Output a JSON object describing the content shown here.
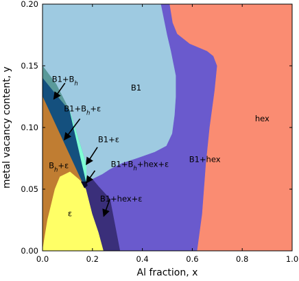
{
  "chart_data": {
    "type": "phase-diagram",
    "xlabel": "Al fraction, x",
    "ylabel": "metal vacancy content, y",
    "xlim": [
      0.0,
      1.0
    ],
    "ylim": [
      0.0,
      0.2
    ],
    "xticks": [
      "0.0",
      "0.2",
      "0.4",
      "0.6",
      "0.8",
      "1.0"
    ],
    "yticks": [
      "0.00",
      "0.05",
      "0.10",
      "0.15",
      "0.20"
    ],
    "regions": [
      {
        "label": "B1",
        "color": "#9ecae1",
        "boundary": [
          [
            0.0,
            0.2
          ],
          [
            0.475,
            0.2
          ],
          [
            0.485,
            0.19
          ],
          [
            0.5,
            0.175
          ],
          [
            0.515,
            0.162
          ],
          [
            0.525,
            0.152
          ],
          [
            0.535,
            0.142
          ],
          [
            0.535,
            0.125
          ],
          [
            0.53,
            0.11
          ],
          [
            0.52,
            0.095
          ],
          [
            0.497,
            0.085
          ],
          [
            0.45,
            0.08
          ],
          [
            0.38,
            0.075
          ],
          [
            0.32,
            0.071
          ],
          [
            0.27,
            0.066
          ],
          [
            0.24,
            0.062
          ],
          [
            0.2,
            0.058
          ],
          [
            0.175,
            0.056
          ],
          [
            0.0,
            0.15
          ]
        ]
      },
      {
        "label": "B1+hex",
        "color": "#6a5acd",
        "boundary": [
          [
            0.475,
            0.2
          ],
          [
            0.51,
            0.2
          ],
          [
            0.522,
            0.185
          ],
          [
            0.54,
            0.176
          ],
          [
            0.59,
            0.168
          ],
          [
            0.66,
            0.162
          ],
          [
            0.685,
            0.158
          ],
          [
            0.7,
            0.15
          ],
          [
            0.69,
            0.13
          ],
          [
            0.67,
            0.1
          ],
          [
            0.655,
            0.07
          ],
          [
            0.64,
            0.03
          ],
          [
            0.62,
            0.0
          ],
          [
            0.31,
            0.0
          ],
          [
            0.27,
            0.042
          ],
          [
            0.225,
            0.052
          ],
          [
            0.2,
            0.058
          ],
          [
            0.24,
            0.062
          ],
          [
            0.27,
            0.066
          ],
          [
            0.32,
            0.071
          ],
          [
            0.38,
            0.075
          ],
          [
            0.45,
            0.08
          ],
          [
            0.497,
            0.085
          ],
          [
            0.52,
            0.095
          ],
          [
            0.53,
            0.11
          ],
          [
            0.535,
            0.125
          ],
          [
            0.535,
            0.142
          ],
          [
            0.525,
            0.152
          ],
          [
            0.515,
            0.162
          ],
          [
            0.5,
            0.175
          ],
          [
            0.485,
            0.19
          ]
        ]
      },
      {
        "label": "hex",
        "color": "#fa8c72",
        "boundary": [
          [
            0.51,
            0.2
          ],
          [
            1.0,
            0.2
          ],
          [
            1.0,
            0.0
          ],
          [
            0.62,
            0.0
          ],
          [
            0.64,
            0.03
          ],
          [
            0.655,
            0.07
          ],
          [
            0.67,
            0.1
          ],
          [
            0.69,
            0.13
          ],
          [
            0.7,
            0.15
          ],
          [
            0.685,
            0.158
          ],
          [
            0.66,
            0.162
          ],
          [
            0.59,
            0.168
          ],
          [
            0.54,
            0.176
          ],
          [
            0.522,
            0.185
          ]
        ]
      },
      {
        "label": "B1+B_h",
        "color": "#5a9a9a",
        "boundary": [
          [
            0.0,
            0.15
          ],
          [
            0.055,
            0.135
          ],
          [
            0.11,
            0.113
          ],
          [
            0.06,
            0.125
          ],
          [
            0.0,
            0.14
          ]
        ]
      },
      {
        "label": "B1+B_h+ε",
        "color": "#14507e",
        "boundary": [
          [
            0.0,
            0.14
          ],
          [
            0.06,
            0.125
          ],
          [
            0.11,
            0.113
          ],
          [
            0.175,
            0.07
          ],
          [
            0.175,
            0.056
          ],
          [
            0.16,
            0.055
          ],
          [
            0.0,
            0.125
          ]
        ]
      },
      {
        "label": "B1+ε",
        "color": "#7fffd4",
        "boundary": [
          [
            0.11,
            0.113
          ],
          [
            0.175,
            0.056
          ],
          [
            0.175,
            0.07
          ]
        ]
      },
      {
        "label": "B_h+ε",
        "color": "#c07d32",
        "boundary": [
          [
            0.0,
            0.125
          ],
          [
            0.16,
            0.055
          ],
          [
            0.145,
            0.058
          ],
          [
            0.11,
            0.064
          ],
          [
            0.07,
            0.06
          ],
          [
            0.05,
            0.05
          ],
          [
            0.02,
            0.025
          ],
          [
            0.0,
            0.0
          ]
        ]
      },
      {
        "label": "ε",
        "color": "#ffff66",
        "boundary": [
          [
            0.0,
            0.0
          ],
          [
            0.02,
            0.025
          ],
          [
            0.05,
            0.05
          ],
          [
            0.07,
            0.06
          ],
          [
            0.11,
            0.064
          ],
          [
            0.145,
            0.058
          ],
          [
            0.16,
            0.055
          ],
          [
            0.175,
            0.05
          ],
          [
            0.2,
            0.03
          ],
          [
            0.225,
            0.015
          ],
          [
            0.245,
            0.0
          ]
        ]
      },
      {
        "label": "B1+hex+ε",
        "color": "#3a2f7a",
        "boundary": [
          [
            0.16,
            0.055
          ],
          [
            0.175,
            0.056
          ],
          [
            0.2,
            0.058
          ],
          [
            0.225,
            0.052
          ],
          [
            0.27,
            0.042
          ],
          [
            0.31,
            0.0
          ],
          [
            0.245,
            0.0
          ],
          [
            0.225,
            0.015
          ],
          [
            0.2,
            0.03
          ],
          [
            0.175,
            0.05
          ]
        ]
      },
      {
        "label": "B1+B_h+hex+ε",
        "color": "#0a0a2a",
        "boundary": [
          [
            0.155,
            0.056
          ],
          [
            0.175,
            0.056
          ],
          [
            0.18,
            0.053
          ],
          [
            0.168,
            0.051
          ]
        ]
      }
    ],
    "labels": [
      {
        "text": "B1",
        "x": 0.375,
        "y": 0.13
      },
      {
        "text": "hex",
        "x": 0.88,
        "y": 0.105
      },
      {
        "text": "B1+hex",
        "x": 0.65,
        "y": 0.072
      },
      {
        "text": "B1+B",
        "sub": "h",
        "x": 0.09,
        "y": 0.137
      },
      {
        "text": "B1+B",
        "sub": "h",
        "suffix": "+ε",
        "x": 0.16,
        "y": 0.113
      },
      {
        "text": "B1+ε",
        "x": 0.265,
        "y": 0.088
      },
      {
        "text": "B1+B",
        "sub": "h",
        "suffix": "+hex+ε",
        "x": 0.39,
        "y": 0.068
      },
      {
        "text": "B",
        "sub": "h",
        "suffix": "+ε",
        "x": 0.065,
        "y": 0.067
      },
      {
        "text": "B1+hex+ε",
        "x": 0.315,
        "y": 0.04
      },
      {
        "text": "ε",
        "x": 0.11,
        "y": 0.028
      }
    ],
    "arrows": [
      {
        "from": [
          0.09,
          0.136
        ],
        "to": [
          0.045,
          0.123
        ]
      },
      {
        "from": [
          0.15,
          0.107
        ],
        "to": [
          0.087,
          0.09
        ]
      },
      {
        "from": [
          0.22,
          0.084
        ],
        "to": [
          0.175,
          0.07
        ]
      },
      {
        "from": [
          0.21,
          0.065
        ],
        "to": [
          0.175,
          0.055
        ]
      },
      {
        "from": [
          0.27,
          0.042
        ],
        "to": [
          0.245,
          0.028
        ]
      }
    ]
  }
}
